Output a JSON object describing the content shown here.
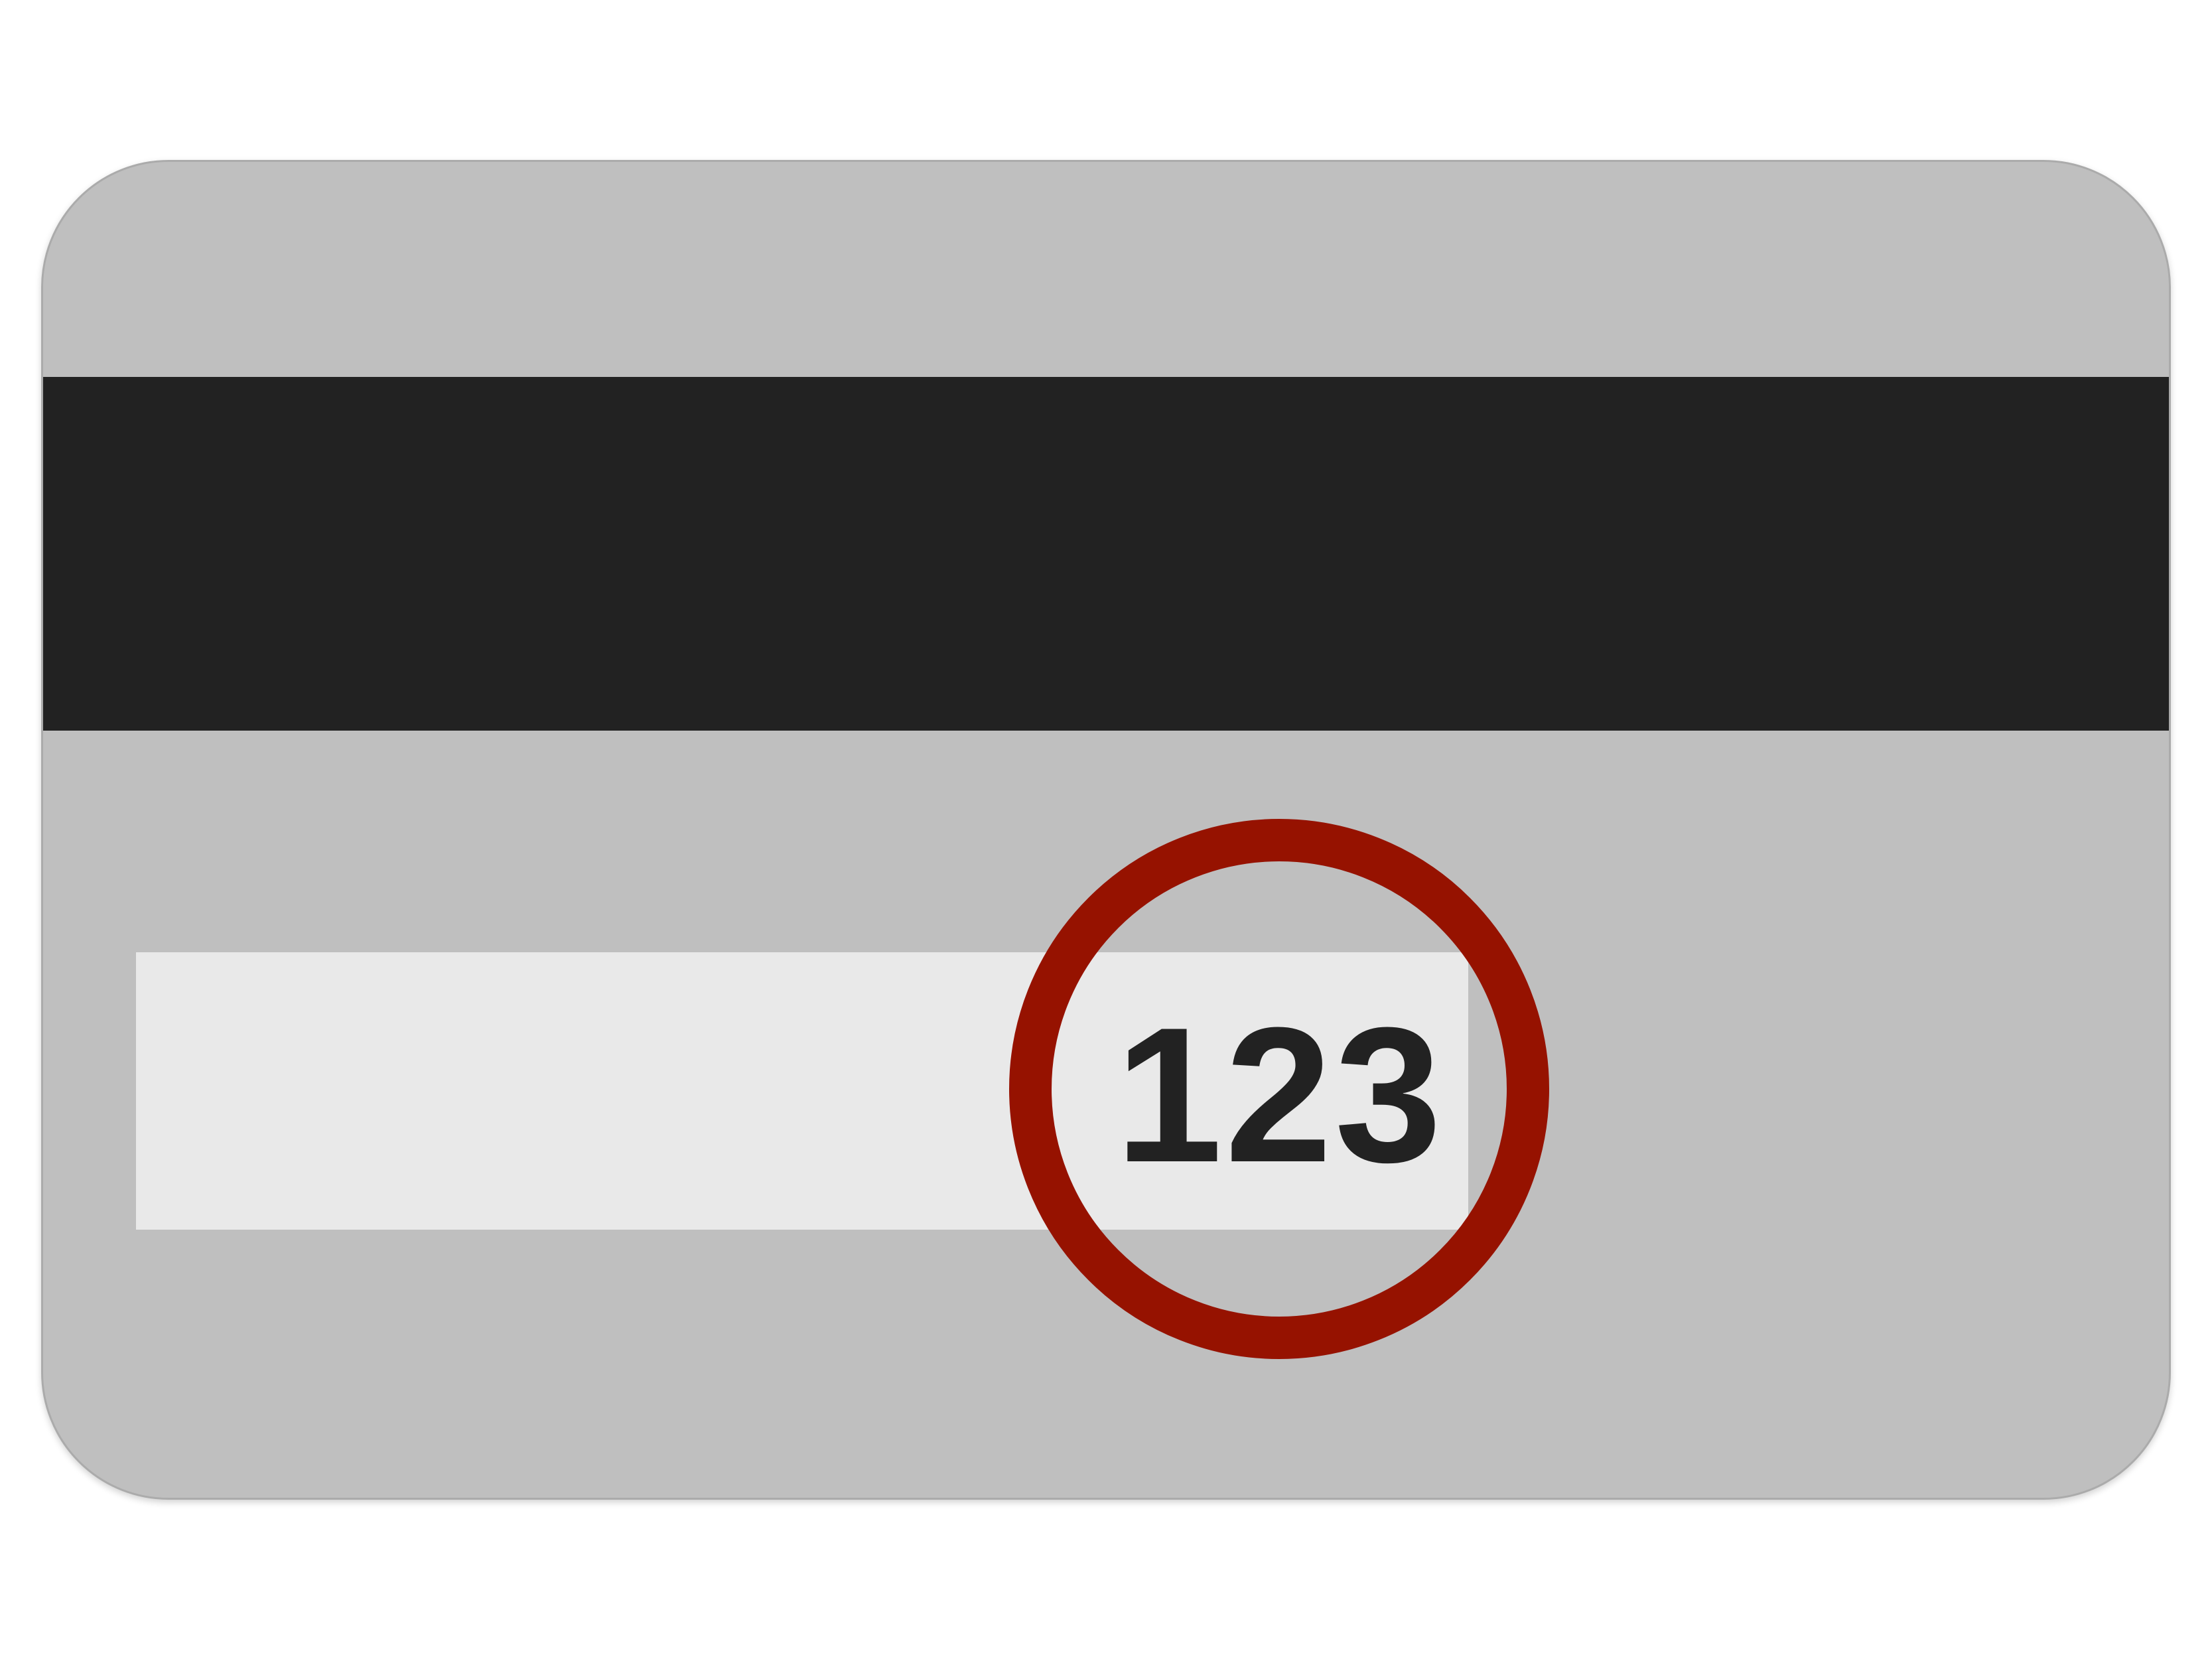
{
  "card": {
    "body_color": "#bfbfbf",
    "border_color": "#ababab",
    "magnetic_stripe_color": "#222222",
    "signature_panel_color": "#e9e9e9"
  },
  "cvv": {
    "code": "123",
    "text_color": "#222222"
  },
  "highlight": {
    "ring_color": "#961200",
    "shape": "circle"
  }
}
